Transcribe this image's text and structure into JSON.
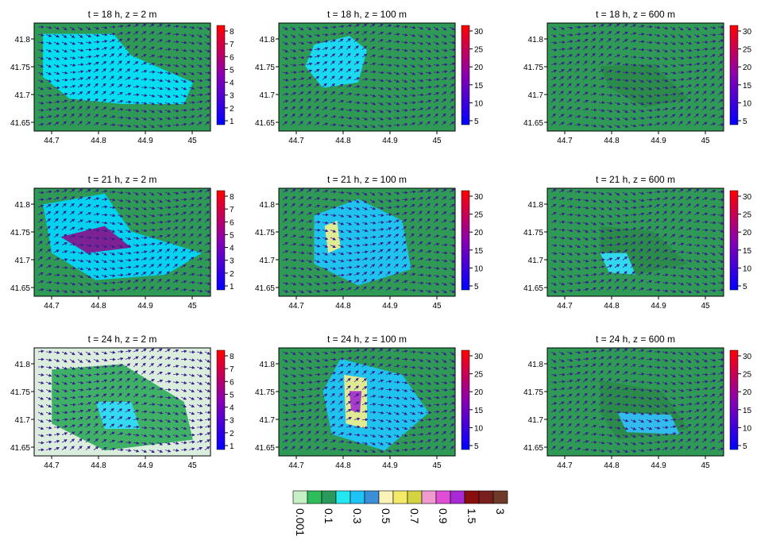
{
  "chart_data": {
    "type": "heatmap",
    "panels": [
      {
        "title": "t = 18 h,  z = 2 m",
        "xticks": [
          "44.7",
          "44.8",
          "44.9",
          "45"
        ],
        "yticks": [
          "41.8",
          "41.75",
          "41.7",
          "41.65"
        ],
        "colorbar": [
          "8",
          "7",
          "6",
          "5",
          "4",
          "3",
          "2",
          "1"
        ]
      },
      {
        "title": "t = 18 h,  z = 100 m",
        "xticks": [
          "44.7",
          "44.8",
          "44.9",
          "45"
        ],
        "yticks": [
          "41.8",
          "41.75",
          "41.7",
          "41.65"
        ],
        "colorbar": [
          "30",
          "25",
          "20",
          "15",
          "10",
          "5"
        ]
      },
      {
        "title": "t = 18 h,  z = 600 m",
        "xticks": [
          "44.7",
          "44.8",
          "44.9",
          "45"
        ],
        "yticks": [
          "41.8",
          "41.75",
          "41.7",
          "41.65"
        ],
        "colorbar": [
          "30",
          "25",
          "20",
          "15",
          "10",
          "5"
        ]
      },
      {
        "title": "t = 21 h,  z = 2 m",
        "xticks": [
          "44.7",
          "44.8",
          "44.9",
          "45"
        ],
        "yticks": [
          "41.8",
          "41.75",
          "41.7",
          "41.65"
        ],
        "colorbar": [
          "8",
          "7",
          "6",
          "5",
          "4",
          "3",
          "2",
          "1"
        ]
      },
      {
        "title": "t = 21 h,  z = 100 m",
        "xticks": [
          "44.7",
          "44.8",
          "44.9",
          "45"
        ],
        "yticks": [
          "41.8",
          "41.75",
          "41.7",
          "41.65"
        ],
        "colorbar": [
          "30",
          "25",
          "20",
          "15",
          "10",
          "5"
        ]
      },
      {
        "title": "t = 21 h,  z = 600 m",
        "xticks": [
          "44.7",
          "44.8",
          "44.9",
          "45"
        ],
        "yticks": [
          "41.8",
          "41.75",
          "41.7",
          "41.65"
        ],
        "colorbar": [
          "30",
          "25",
          "20",
          "15",
          "10",
          "5"
        ]
      },
      {
        "title": "t = 24 h,  z = 2 m",
        "xticks": [
          "44.7",
          "44.8",
          "44.9",
          "45"
        ],
        "yticks": [
          "41.8",
          "41.75",
          "41.7",
          "41.65"
        ],
        "colorbar": [
          "8",
          "7",
          "6",
          "5",
          "4",
          "3",
          "2",
          "1"
        ]
      },
      {
        "title": "t = 24 h,  z = 100 m",
        "xticks": [
          "44.7",
          "44.8",
          "44.9",
          "45"
        ],
        "yticks": [
          "41.8",
          "41.75",
          "41.7",
          "41.65"
        ],
        "colorbar": [
          "30",
          "25",
          "20",
          "15",
          "10",
          "5"
        ]
      },
      {
        "title": "t = 24 h,  z = 600 m",
        "xticks": [
          "44.7",
          "44.8",
          "44.9",
          "45"
        ],
        "yticks": [
          "41.8",
          "41.75",
          "41.7",
          "41.65"
        ],
        "colorbar": [
          "30",
          "25",
          "20",
          "15",
          "10",
          "5"
        ]
      }
    ],
    "legend": {
      "swatches": [
        "#c7f0c7",
        "#2ebd5a",
        "#2a9a5c",
        "#23e8f0",
        "#1fc3f5",
        "#3a8fd8",
        "#fbf3b8",
        "#f4ea6a",
        "#d4d442",
        "#f19ad0",
        "#e04ed6",
        "#a82ad6",
        "#8a0e0e",
        "#7a1f1f",
        "#6e3a2a"
      ],
      "labels": [
        "0.001",
        "0.1",
        "0.3",
        "0.5",
        "0.7",
        "0.9",
        "1.5",
        "3"
      ]
    }
  }
}
